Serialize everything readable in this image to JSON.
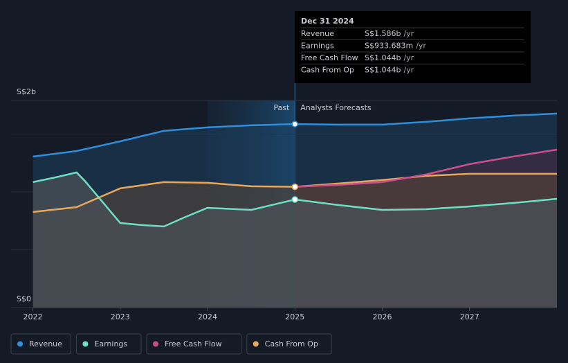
{
  "chart_data": {
    "type": "line",
    "xlim": [
      2021.75,
      2028
    ],
    "xticks": [
      2022,
      2023,
      2024,
      2025,
      2026,
      2027
    ],
    "ylim": [
      0,
      1.79
    ],
    "yticks": [
      {
        "value": 0,
        "label": "S$0"
      },
      {
        "value": 1.79,
        "label": "S$2b"
      }
    ],
    "minor_yticks": [
      0.5,
      1,
      1.5
    ],
    "past_range": [
      2024,
      2025
    ],
    "past_label": "Past",
    "forecast_label": "Analysts Forecasts",
    "series": [
      {
        "name": "Revenue",
        "color": "#2e8fdc",
        "x": [
          2022,
          2022.5,
          2023,
          2023.5,
          2024,
          2024.5,
          2025,
          2025.5,
          2026,
          2026.5,
          2027,
          2027.5,
          2028
        ],
        "values": [
          1.305,
          1.353,
          1.437,
          1.527,
          1.557,
          1.575,
          1.586,
          1.581,
          1.581,
          1.605,
          1.635,
          1.659,
          1.677
        ]
      },
      {
        "name": "Earnings",
        "color": "#6ee0c6",
        "x": [
          2022,
          2022.3,
          2022.5,
          2022.6,
          2023,
          2023.25,
          2023.5,
          2023.75,
          2024,
          2024.5,
          2025,
          2025.5,
          2026,
          2026.5,
          2027,
          2027.5,
          2028
        ],
        "values": [
          1.084,
          1.132,
          1.168,
          1.09,
          0.731,
          0.713,
          0.701,
          0.784,
          0.862,
          0.844,
          0.934,
          0.886,
          0.844,
          0.85,
          0.874,
          0.904,
          0.94
        ]
      },
      {
        "name": "Free Cash Flow",
        "color": "#c9508c",
        "x": [
          2025,
          2025.5,
          2026,
          2026.5,
          2027,
          2027.5,
          2028
        ],
        "values": [
          1.044,
          1.06,
          1.084,
          1.15,
          1.24,
          1.305,
          1.365
        ]
      },
      {
        "name": "Cash From Op",
        "color": "#e8a95c",
        "x": [
          2022,
          2022.5,
          2023,
          2023.5,
          2024,
          2024.5,
          2025,
          2025.5,
          2026,
          2026.5,
          2027,
          2028
        ],
        "values": [
          0.826,
          0.868,
          1.03,
          1.084,
          1.078,
          1.048,
          1.044,
          1.072,
          1.102,
          1.138,
          1.156,
          1.156
        ]
      }
    ],
    "tooltip": {
      "title": "Dec 31 2024",
      "rows": [
        {
          "label": "Revenue",
          "value": "S$1.586b",
          "unit": "/yr"
        },
        {
          "label": "Earnings",
          "value": "S$933.683m",
          "unit": "/yr"
        },
        {
          "label": "Free Cash Flow",
          "value": "S$1.044b",
          "unit": "/yr"
        },
        {
          "label": "Cash From Op",
          "value": "S$1.044b",
          "unit": "/yr"
        }
      ]
    }
  }
}
